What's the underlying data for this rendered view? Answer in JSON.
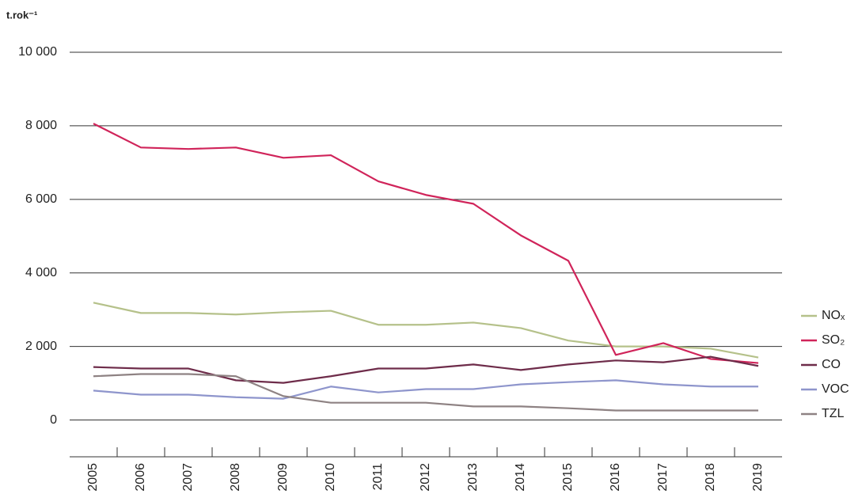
{
  "chart_data": {
    "type": "line",
    "y_label": "t.rok⁻¹",
    "categories": [
      "2005",
      "2006",
      "2007",
      "2008",
      "2009",
      "2010",
      "2011",
      "2012",
      "2013",
      "2014",
      "2015",
      "2016",
      "2017",
      "2018",
      "2019"
    ],
    "series": [
      {
        "name": "NOₓ",
        "color": "#b5c18a",
        "values": [
          3190,
          2910,
          2910,
          2870,
          2930,
          2970,
          2590,
          2590,
          2650,
          2500,
          2160,
          2000,
          2000,
          1940,
          1700
        ]
      },
      {
        "name": "SO₂",
        "color": "#d0245a",
        "values": [
          8060,
          7410,
          7370,
          7410,
          7130,
          7200,
          6490,
          6120,
          5880,
          5020,
          4330,
          1770,
          2090,
          1660,
          1550
        ]
      },
      {
        "name": "CO",
        "color": "#6e2c4a",
        "values": [
          1440,
          1400,
          1400,
          1080,
          1010,
          1190,
          1400,
          1400,
          1510,
          1360,
          1510,
          1620,
          1570,
          1720,
          1470
        ]
      },
      {
        "name": "VOC",
        "color": "#8e95cc",
        "values": [
          800,
          690,
          690,
          620,
          580,
          910,
          750,
          840,
          840,
          970,
          1030,
          1080,
          970,
          910,
          910
        ]
      },
      {
        "name": "TZL",
        "color": "#8e8283",
        "values": [
          1190,
          1250,
          1250,
          1190,
          650,
          470,
          470,
          470,
          370,
          370,
          320,
          260,
          260,
          260,
          260
        ]
      }
    ],
    "ylim": [
      -1000,
      10000
    ],
    "yticks": [
      0,
      {
        "value": 2000,
        "label": "2 000"
      },
      {
        "value": 4000,
        "label": "4 000"
      },
      {
        "value": 6000,
        "label": "6 000"
      },
      {
        "value": 8000,
        "label": "8 000"
      },
      {
        "value": 10000,
        "label": "10 000"
      }
    ],
    "grid": true
  }
}
